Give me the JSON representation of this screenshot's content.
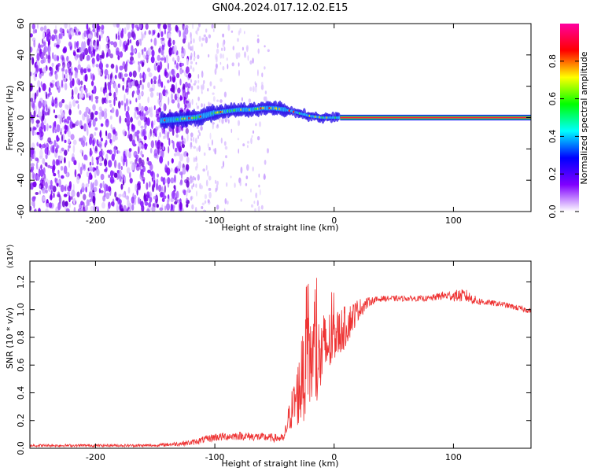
{
  "title": "GN04.2024.017.12.02.E15",
  "chart_data": [
    {
      "type": "heatmap",
      "xlabel": "Height of straight line (km)",
      "ylabel": "Frequency (Hz)",
      "xlim": [
        -255,
        165
      ],
      "ylim": [
        -60,
        60
      ],
      "xticks": [
        -200,
        -100,
        0,
        100
      ],
      "yticks": [
        -60,
        -40,
        -20,
        0,
        20,
        40,
        60
      ],
      "colorbar": {
        "label": "Normalized spectral amplitude",
        "range": [
          0,
          1
        ],
        "ticks": [
          "0.0",
          "0.2",
          "0.4",
          "0.6",
          "0.8"
        ],
        "colors": [
          "#ffffff",
          "#8000ff",
          "#0000ff",
          "#00ffff",
          "#00ff00",
          "#ffff00",
          "#ff0000",
          "#ff00a0"
        ]
      },
      "features": {
        "noise_region_x": [
          -255,
          -120
        ],
        "sparse_region_x": [
          -120,
          -55
        ],
        "trace_center": [
          [
            -145,
            -2
          ],
          [
            -130,
            -1
          ],
          [
            -115,
            0
          ],
          [
            -100,
            3
          ],
          [
            -90,
            4
          ],
          [
            -80,
            5
          ],
          [
            -70,
            5
          ],
          [
            -60,
            6
          ],
          [
            -50,
            6
          ],
          [
            -40,
            5
          ],
          [
            -30,
            3
          ],
          [
            -20,
            1
          ],
          [
            -10,
            0
          ],
          [
            0,
            0
          ],
          [
            10,
            0
          ],
          [
            165,
            0
          ]
        ],
        "carrier_start_x": 5
      }
    },
    {
      "type": "line",
      "xlabel": "Height of straight line (km)",
      "ylabel": "SNR (10 * v/v)",
      "ylabel_multiplier": "(x10⁴)",
      "xlim": [
        -255,
        165
      ],
      "ylim": [
        0,
        1.35
      ],
      "xticks": [
        -200,
        -100,
        0,
        100
      ],
      "yticks": [
        "0.0",
        "0.2",
        "0.4",
        "0.6",
        "0.8",
        "1.0",
        "1.2"
      ],
      "series": [
        {
          "color": "#ee3333",
          "envelope": {
            "x": [
              -255,
              -200,
              -150,
              -120,
              -100,
              -80,
              -60,
              -42,
              -38,
              -30,
              -25,
              -20,
              -15,
              -10,
              -5,
              0,
              10,
              20,
              30,
              40,
              60,
              80,
              90,
              100,
              110,
              120,
              130,
              140,
              150,
              165
            ],
            "mean": [
              0.02,
              0.02,
              0.02,
              0.04,
              0.08,
              0.09,
              0.08,
              0.07,
              0.22,
              0.4,
              0.55,
              0.65,
              0.6,
              0.68,
              0.75,
              0.8,
              0.88,
              1.0,
              1.06,
              1.08,
              1.08,
              1.08,
              1.1,
              1.1,
              1.1,
              1.06,
              1.05,
              1.04,
              1.02,
              0.99
            ],
            "spread": [
              0.01,
              0.01,
              0.01,
              0.02,
              0.03,
              0.03,
              0.03,
              0.03,
              0.1,
              0.25,
              0.35,
              0.4,
              0.35,
              0.3,
              0.25,
              0.2,
              0.15,
              0.08,
              0.03,
              0.02,
              0.02,
              0.02,
              0.03,
              0.04,
              0.05,
              0.03,
              0.02,
              0.02,
              0.02,
              0.02
            ]
          }
        }
      ]
    }
  ]
}
